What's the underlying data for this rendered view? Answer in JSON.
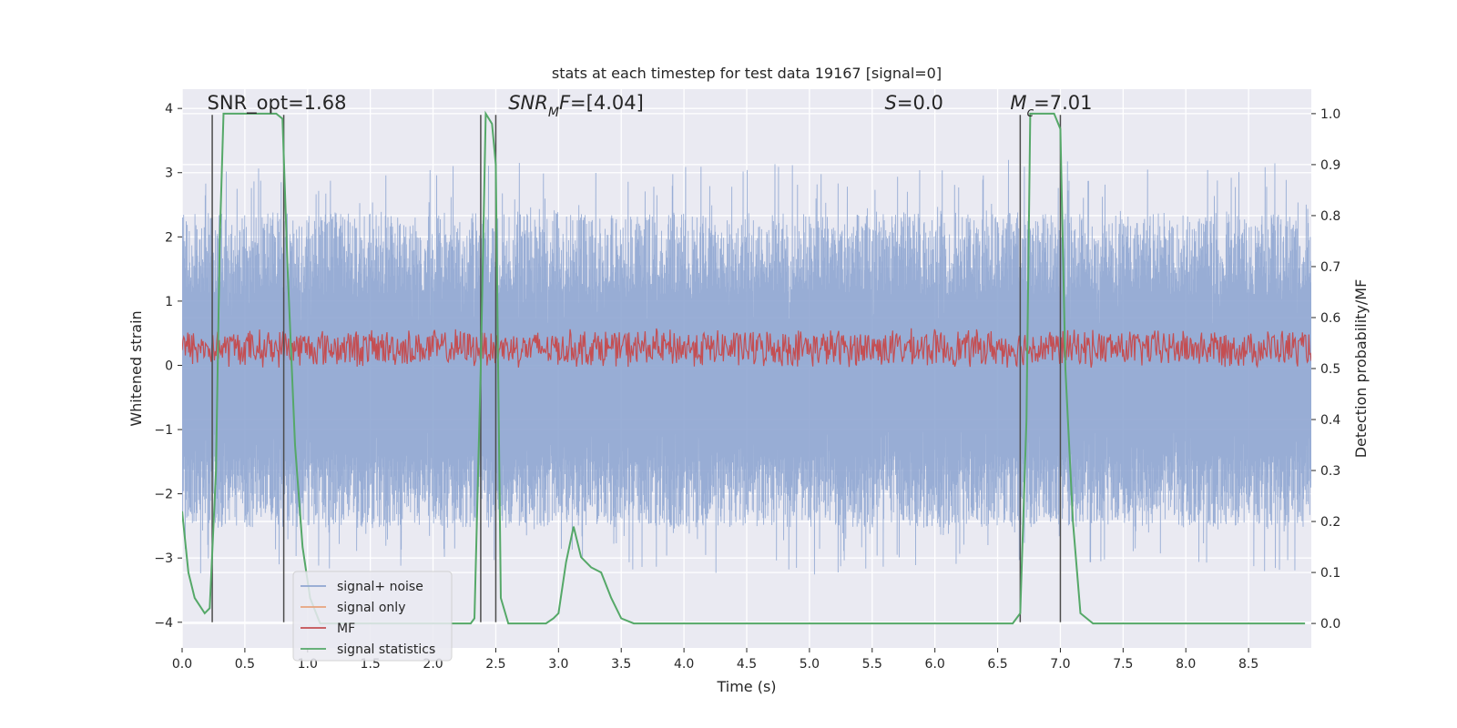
{
  "chart_data": {
    "type": "line",
    "title": "stats at each timestep for test data 19167 [signal=0]",
    "xlabel": "Time (s)",
    "ylabel": "Whitened strain",
    "ylabel_right": "Detection probability/MF",
    "xlim": [
      0,
      9.0
    ],
    "ylim": [
      -4.4,
      4.3
    ],
    "ylim_right": [
      -0.048,
      1.048
    ],
    "x_ticks": [
      "0.0",
      "0.5",
      "1.0",
      "1.5",
      "2.0",
      "2.5",
      "3.0",
      "3.5",
      "4.0",
      "4.5",
      "5.0",
      "5.5",
      "6.0",
      "6.5",
      "7.0",
      "7.5",
      "8.0",
      "8.5"
    ],
    "y_ticks": [
      "4",
      "3",
      "2",
      "1",
      "0",
      "−1",
      "−2",
      "−3",
      "−4"
    ],
    "y_right_ticks": [
      "1.0",
      "0.9",
      "0.8",
      "0.7",
      "0.6",
      "0.5",
      "0.4",
      "0.3",
      "0.2",
      "0.1",
      "0.0"
    ],
    "grid": true,
    "legend_position": "lower-left",
    "annotations": [
      {
        "x": 0.2,
        "y": 4.1,
        "segments": [
          {
            "t": "SNR_opt=1.68"
          }
        ]
      },
      {
        "x": 2.6,
        "y": 4.1,
        "segments": [
          {
            "t": "SNR",
            "italic": true
          },
          {
            "t": "M",
            "italic": true,
            "sub": true
          },
          {
            "t": "F",
            "italic": true
          },
          {
            "t": "=[4.04]"
          }
        ]
      },
      {
        "x": 5.6,
        "y": 4.1,
        "segments": [
          {
            "t": "S",
            "italic": true
          },
          {
            "t": "=0.0"
          }
        ]
      },
      {
        "x": 6.6,
        "y": 4.1,
        "segments": [
          {
            "t": "M",
            "italic": true
          },
          {
            "t": "c",
            "italic": true,
            "sub": true
          },
          {
            "t": "=7.01"
          }
        ]
      }
    ],
    "vertical_markers": [
      0.24,
      0.81,
      2.38,
      2.5,
      6.68,
      7.0
    ],
    "vertical_marker_range": [
      -4.0,
      3.9
    ],
    "series": [
      {
        "name": "signal+ noise",
        "color": "#8fa6d1",
        "band": {
          "upper_mean": 1.55,
          "upper_jitter": 1.6,
          "lower_mean": -1.8,
          "lower_jitter": 1.4
        }
      },
      {
        "name": "signal only",
        "color": "#e8a37e",
        "values": []
      },
      {
        "name": "MF",
        "color": "#c44e52",
        "band": {
          "center": 0.27,
          "amplitude": 0.32
        }
      },
      {
        "name": "signal statistics",
        "color": "#55a868",
        "axis": "right",
        "x": [
          0.0,
          0.05,
          0.1,
          0.18,
          0.22,
          0.27,
          0.3,
          0.33,
          0.45,
          0.6,
          0.75,
          0.8,
          0.84,
          0.9,
          0.96,
          1.02,
          1.1,
          1.5,
          2.0,
          2.2,
          2.3,
          2.33,
          2.38,
          2.42,
          2.47,
          2.5,
          2.54,
          2.6,
          2.7,
          2.9,
          2.96,
          3.0,
          3.06,
          3.12,
          3.18,
          3.26,
          3.34,
          3.42,
          3.5,
          3.6,
          4.0,
          5.0,
          6.0,
          6.5,
          6.62,
          6.68,
          6.73,
          6.76,
          6.8,
          6.95,
          7.0,
          7.04,
          7.1,
          7.16,
          7.26,
          7.4,
          7.6,
          8.0,
          8.5,
          8.95
        ],
        "values": [
          0.22,
          0.1,
          0.05,
          0.02,
          0.03,
          0.3,
          0.75,
          1.0,
          1.0,
          1.0,
          1.0,
          0.99,
          0.7,
          0.35,
          0.15,
          0.05,
          0.0,
          0.0,
          0.0,
          0.0,
          0.0,
          0.01,
          0.5,
          1.0,
          0.98,
          0.9,
          0.05,
          0.0,
          0.0,
          0.0,
          0.01,
          0.02,
          0.12,
          0.19,
          0.13,
          0.11,
          0.1,
          0.05,
          0.01,
          0.0,
          0.0,
          0.0,
          0.0,
          0.0,
          0.0,
          0.02,
          0.4,
          1.0,
          1.0,
          1.0,
          0.97,
          0.5,
          0.2,
          0.02,
          0.0,
          0.0,
          0.0,
          0.0,
          0.0,
          0.0
        ]
      }
    ]
  }
}
